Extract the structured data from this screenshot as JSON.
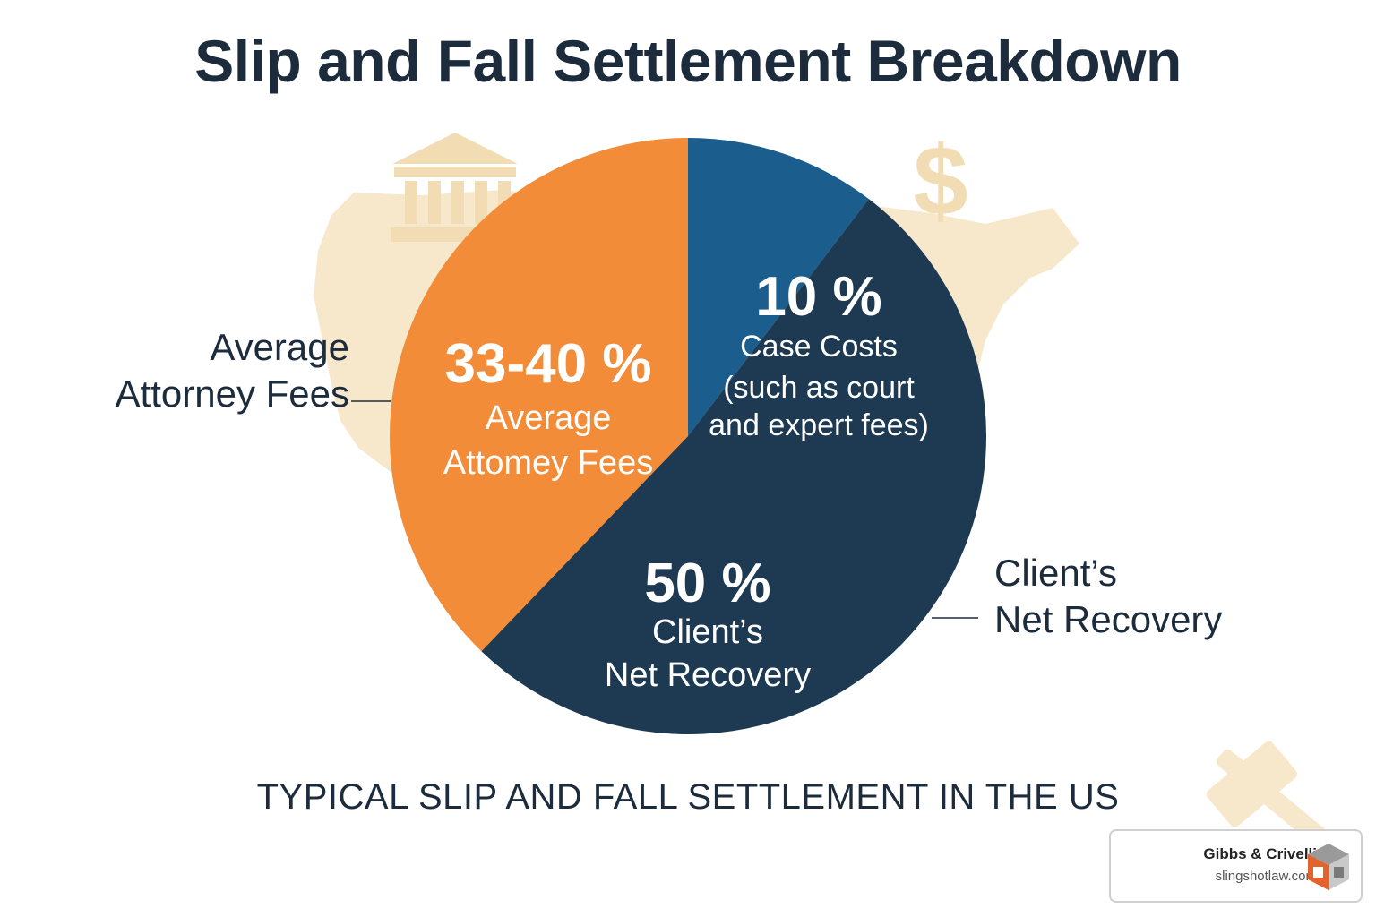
{
  "title": "Slip and Fall Settlement Breakdown",
  "subtitle": "TYPICAL SLIP AND FALL SETTLEMENT IN THE US",
  "external_labels": {
    "left": [
      "Average",
      "Attorney Fees"
    ],
    "right": [
      "Client’s",
      "Net Recovery"
    ]
  },
  "branding": {
    "name": "Gibbs & Crivelli",
    "url": "slingshotlaw.com"
  },
  "colors": {
    "attorney": "#f28c38",
    "costs": "#1b5e8e",
    "client": "#1d3a52",
    "title_text": "#1c2c3c",
    "background_art": "#f7e8cc"
  },
  "chart_data": {
    "type": "pie",
    "title": "Slip and Fall Settlement Breakdown",
    "slices": [
      {
        "name": "Case Costs",
        "value_label": "10 %",
        "label_lines": [
          "Case Costs",
          "(such as court",
          "and expert fees)"
        ],
        "value": 10,
        "color": "#1b5e8e"
      },
      {
        "name": "Client’s Net Recovery",
        "value_label": "50 %",
        "label_lines": [
          "Client’s",
          "Net Recovery"
        ],
        "value": 50,
        "color": "#1d3a52"
      },
      {
        "name": "Average Attorney Fees",
        "value_label": "33-40 %",
        "label_lines": [
          "Average",
          "Attomey Fees"
        ],
        "value": 36.5,
        "color": "#f28c38"
      }
    ],
    "legend": "none"
  }
}
